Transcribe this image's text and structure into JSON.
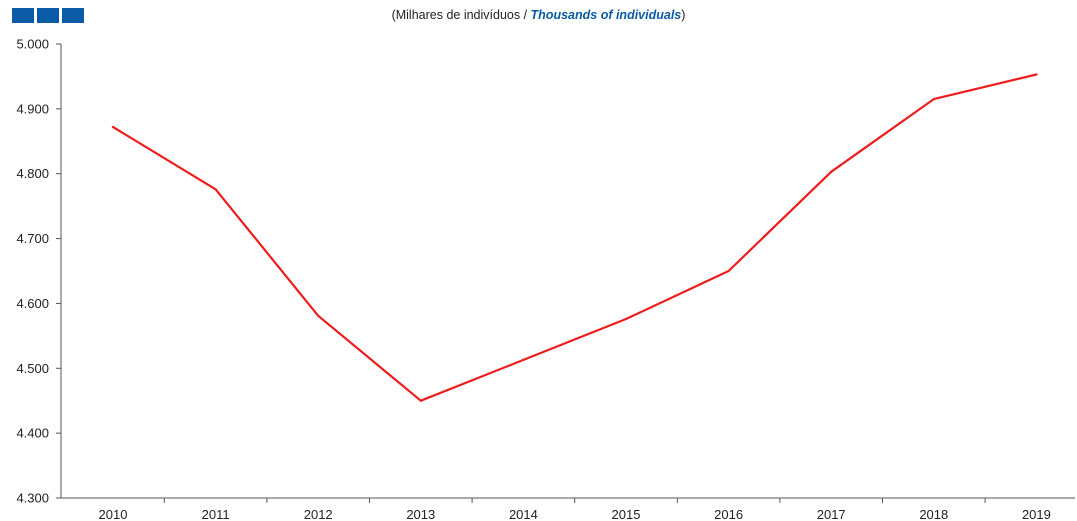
{
  "header": {
    "subtitle_open": "(",
    "subtitle_pt": "Milhares  de indivíduos  ",
    "subtitle_sep": " / ",
    "subtitle_en": "Thousands of individuals",
    "subtitle_close": ")"
  },
  "colors": {
    "logo": "#0b5aa6",
    "line": "#ee1c1c",
    "axis": "#555555"
  },
  "chart_data": {
    "type": "line",
    "categories": [
      "2010",
      "2011",
      "2012",
      "2013",
      "2014",
      "2015",
      "2016",
      "2017",
      "2018",
      "2019"
    ],
    "series": [
      {
        "values": [
          4872,
          4776,
          4581,
          4450,
          4513,
          4576,
          4650,
          4803,
          4915,
          4953
        ]
      }
    ],
    "yticks": [
      "4.300",
      "4.400",
      "4.500",
      "4.600",
      "4.700",
      "4.800",
      "4.900",
      "5.000"
    ],
    "ylim": [
      4300,
      5000
    ],
    "grid": false,
    "legend": false
  }
}
